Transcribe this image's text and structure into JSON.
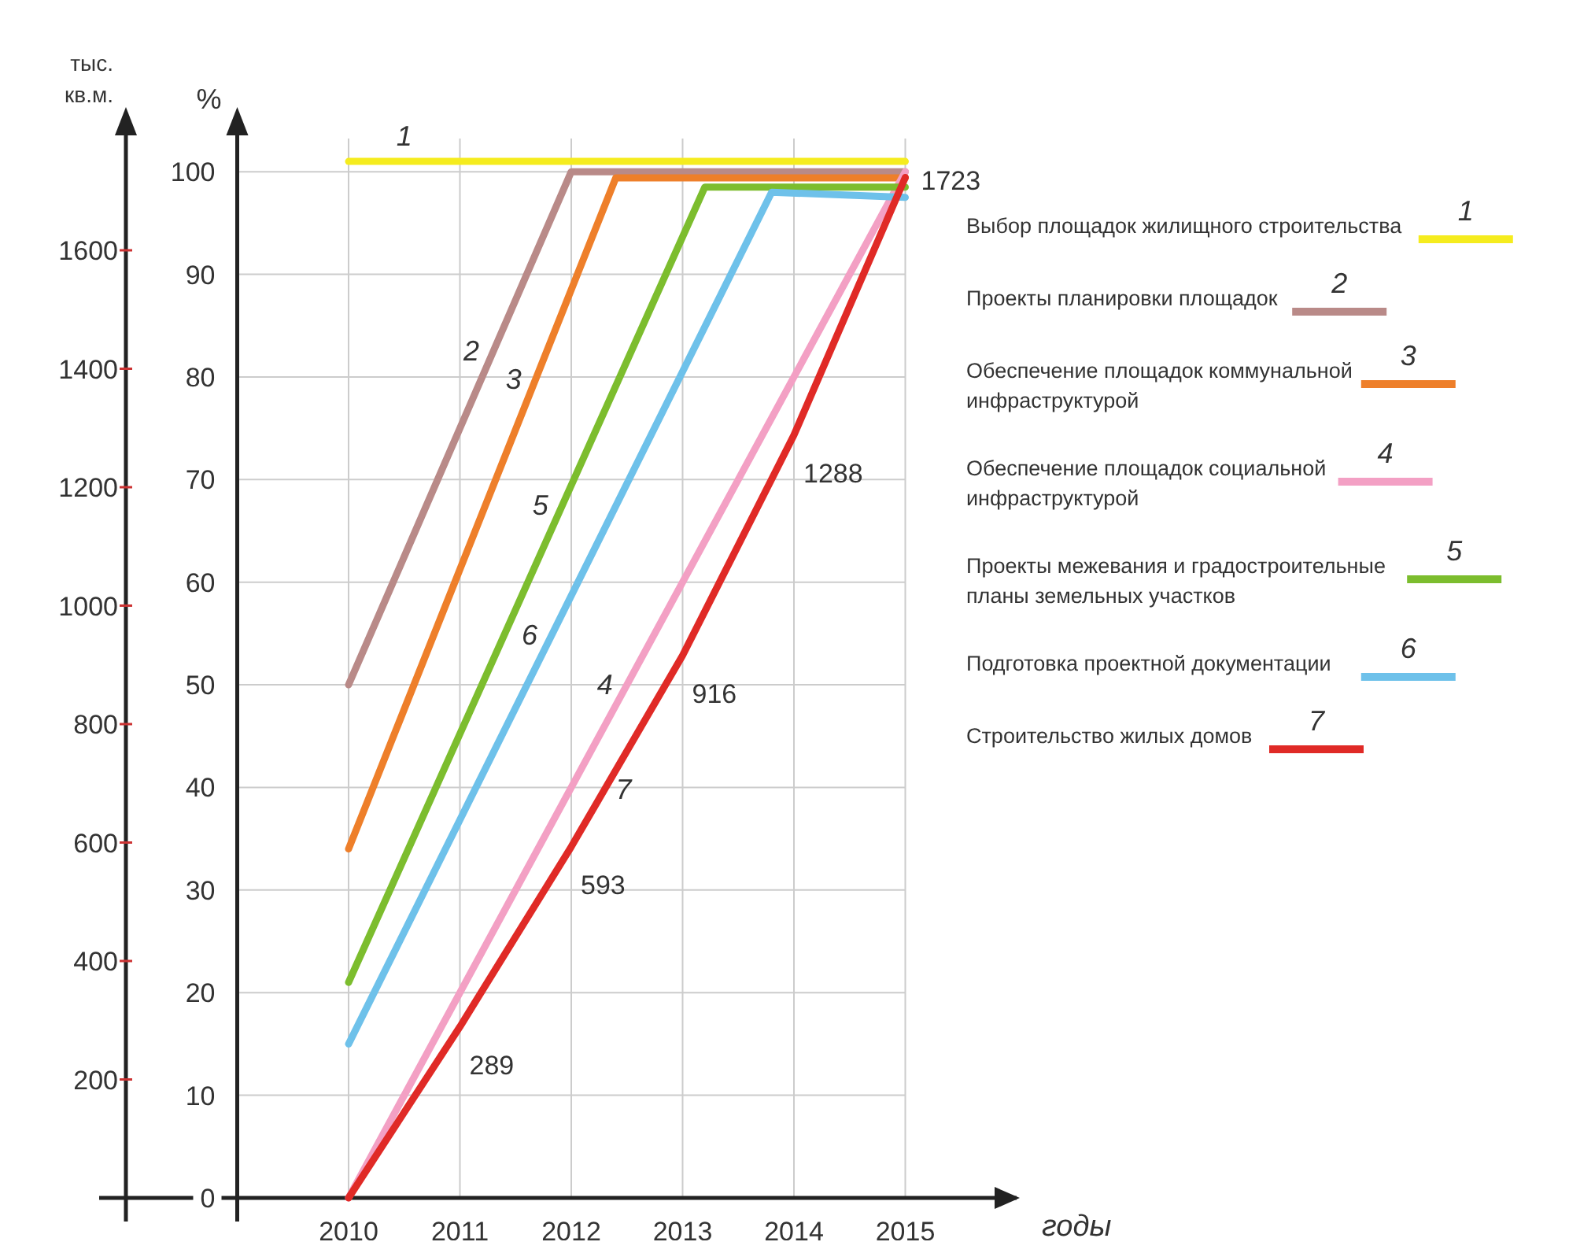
{
  "chart_data": {
    "type": "line",
    "xlabel": "годы",
    "ylabel": "%",
    "y2label": "тыс. кв.м.",
    "xlim": [
      2008,
      2016
    ],
    "xticks": [
      2010,
      2011,
      2012,
      2013,
      2014,
      2015
    ],
    "ylim": [
      0,
      104
    ],
    "yticks": [
      {
        "value": 0,
        "label": "0"
      },
      10,
      20,
      30,
      40,
      50,
      60,
      70,
      80,
      90,
      100
    ],
    "y2lim": [
      0,
      1802
    ],
    "y2ticks": [
      200,
      400,
      600,
      800,
      1000,
      1200,
      1400,
      1600
    ],
    "grid": true,
    "legend": "right",
    "marker": "none",
    "line_style": "solid",
    "series": [
      {
        "name": "Выбор площадок жилищного строительства",
        "color": "#f5ec1e",
        "x": [
          2010,
          2015
        ],
        "values": [
          101,
          101
        ]
      },
      {
        "name": "Проекты планировки площадок",
        "color": "#b98a88",
        "x": [
          2010,
          2012,
          2015
        ],
        "values": [
          50,
          100,
          100
        ]
      },
      {
        "name": "Обеспечение площадок коммунальной инфраструктурой",
        "color": "#ee7f2a",
        "x": [
          2010,
          2012.4,
          2015
        ],
        "values": [
          34,
          99.4,
          99.4
        ]
      },
      {
        "name": "Обеспечение площадок социальной инфраструктурой",
        "color": "#f3a0c4",
        "x": [
          2010,
          2015
        ],
        "values": [
          0,
          100
        ]
      },
      {
        "name": "Проекты межевания и градостроительные планы земельных участков",
        "color": "#7cbd2e",
        "x": [
          2010,
          2013.2,
          2015
        ],
        "values": [
          21,
          98.5,
          98.5
        ]
      },
      {
        "name": "Подготовка проектной документации",
        "color": "#6ec1ea",
        "x": [
          2010,
          2013.8,
          2015
        ],
        "values": [
          15,
          98,
          97.5
        ]
      },
      {
        "name": "Строительство жилых домов",
        "color": "#e02a26",
        "axis": "y2",
        "x": [
          2010,
          2011,
          2012,
          2013,
          2014,
          2015
        ],
        "values": [
          0,
          289,
          593,
          916,
          1288,
          1723
        ],
        "value_labels": [
          null,
          "289",
          "593",
          "916",
          "1288",
          "1723"
        ]
      }
    ],
    "annotations": [
      "1",
      "2",
      "3",
      "4",
      "5",
      "6",
      "7"
    ]
  }
}
